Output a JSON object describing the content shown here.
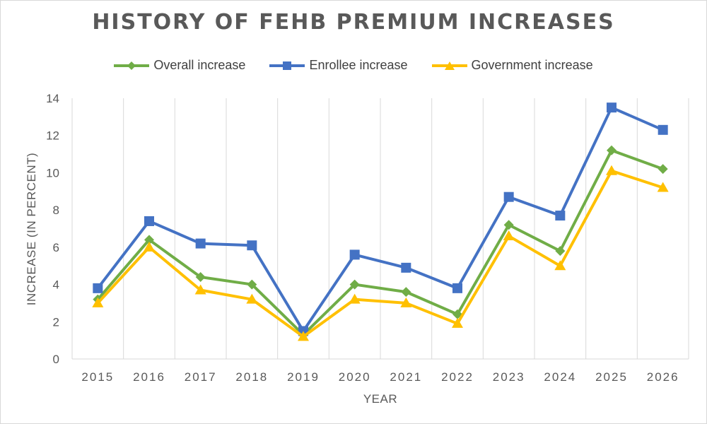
{
  "chart_data": {
    "type": "line",
    "title": "HISTORY OF FEHB PREMIUM INCREASES",
    "xlabel": "YEAR",
    "ylabel": "INCREASE (IN PERCENT)",
    "categories": [
      "2015",
      "2016",
      "2017",
      "2018",
      "2019",
      "2020",
      "2021",
      "2022",
      "2023",
      "2024",
      "2025",
      "2026"
    ],
    "ylim": [
      0,
      14
    ],
    "yticks": [
      0,
      2,
      4,
      6,
      8,
      10,
      12,
      14
    ],
    "grid": "vertical",
    "legend": "top",
    "series": [
      {
        "name": "Overall increase",
        "color": "#70ad47",
        "marker": "diamond",
        "values": [
          3.2,
          6.4,
          4.4,
          4.0,
          1.3,
          4.0,
          3.6,
          2.4,
          7.2,
          5.8,
          11.2,
          10.2
        ]
      },
      {
        "name": "Enrollee increase",
        "color": "#4472c4",
        "marker": "square",
        "values": [
          3.8,
          7.4,
          6.2,
          6.1,
          1.5,
          5.6,
          4.9,
          3.8,
          8.7,
          7.7,
          13.5,
          12.3
        ]
      },
      {
        "name": "Government increase",
        "color": "#ffc000",
        "marker": "triangle",
        "values": [
          3.0,
          6.0,
          3.7,
          3.2,
          1.2,
          3.2,
          3.0,
          1.9,
          6.6,
          5.0,
          10.1,
          9.2
        ]
      }
    ]
  }
}
